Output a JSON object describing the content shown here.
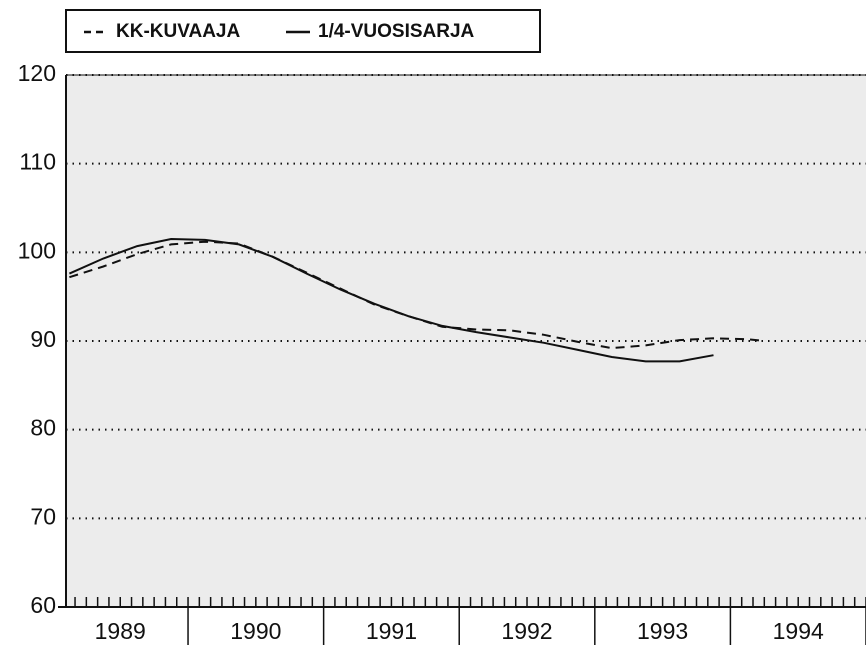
{
  "chart_data": {
    "type": "line",
    "legend": "top-left",
    "xlim": [
      1989.1,
      1995.0
    ],
    "xticks": [
      {
        "value": 1989.5,
        "label": "1989"
      },
      {
        "value": 1990.5,
        "label": "1990"
      },
      {
        "value": 1991.5,
        "label": "1991"
      },
      {
        "value": 1992.5,
        "label": "1992"
      },
      {
        "value": 1993.5,
        "label": "1993"
      },
      {
        "value": 1994.5,
        "label": "1994"
      }
    ],
    "ylim": [
      60,
      120
    ],
    "yticks": [
      60,
      70,
      80,
      90,
      100,
      110,
      120
    ],
    "grid": true,
    "series": [
      {
        "name": "KK-KUVAAJA",
        "color": "#111111",
        "style": "dashed",
        "x": [
          1989.125,
          1989.375,
          1989.625,
          1989.875,
          1990.125,
          1990.375,
          1990.625,
          1990.875,
          1991.125,
          1991.375,
          1991.625,
          1991.875,
          1992.125,
          1992.375,
          1992.625,
          1992.875,
          1993.125,
          1993.375,
          1993.625,
          1993.875,
          1994.125,
          1994.25
        ],
        "values": [
          97.2,
          98.4,
          99.8,
          100.9,
          101.2,
          101.0,
          99.5,
          97.7,
          95.9,
          94.1,
          92.8,
          91.6,
          91.3,
          91.2,
          90.7,
          89.9,
          89.2,
          89.5,
          90.1,
          90.3,
          90.2,
          90.0
        ]
      },
      {
        "name": "1/4-VUOSISARJA",
        "color": "#111111",
        "style": "solid",
        "x": [
          1989.125,
          1989.375,
          1989.625,
          1989.875,
          1990.125,
          1990.375,
          1990.625,
          1990.875,
          1991.125,
          1991.375,
          1991.625,
          1991.875,
          1992.125,
          1992.375,
          1992.625,
          1992.875,
          1993.125,
          1993.375,
          1993.625,
          1993.875
        ],
        "values": [
          97.6,
          99.3,
          100.7,
          101.5,
          101.4,
          100.9,
          99.5,
          97.6,
          95.8,
          94.2,
          92.8,
          91.7,
          91.0,
          90.4,
          89.8,
          89.0,
          88.2,
          87.7,
          87.7,
          88.4
        ]
      }
    ]
  }
}
